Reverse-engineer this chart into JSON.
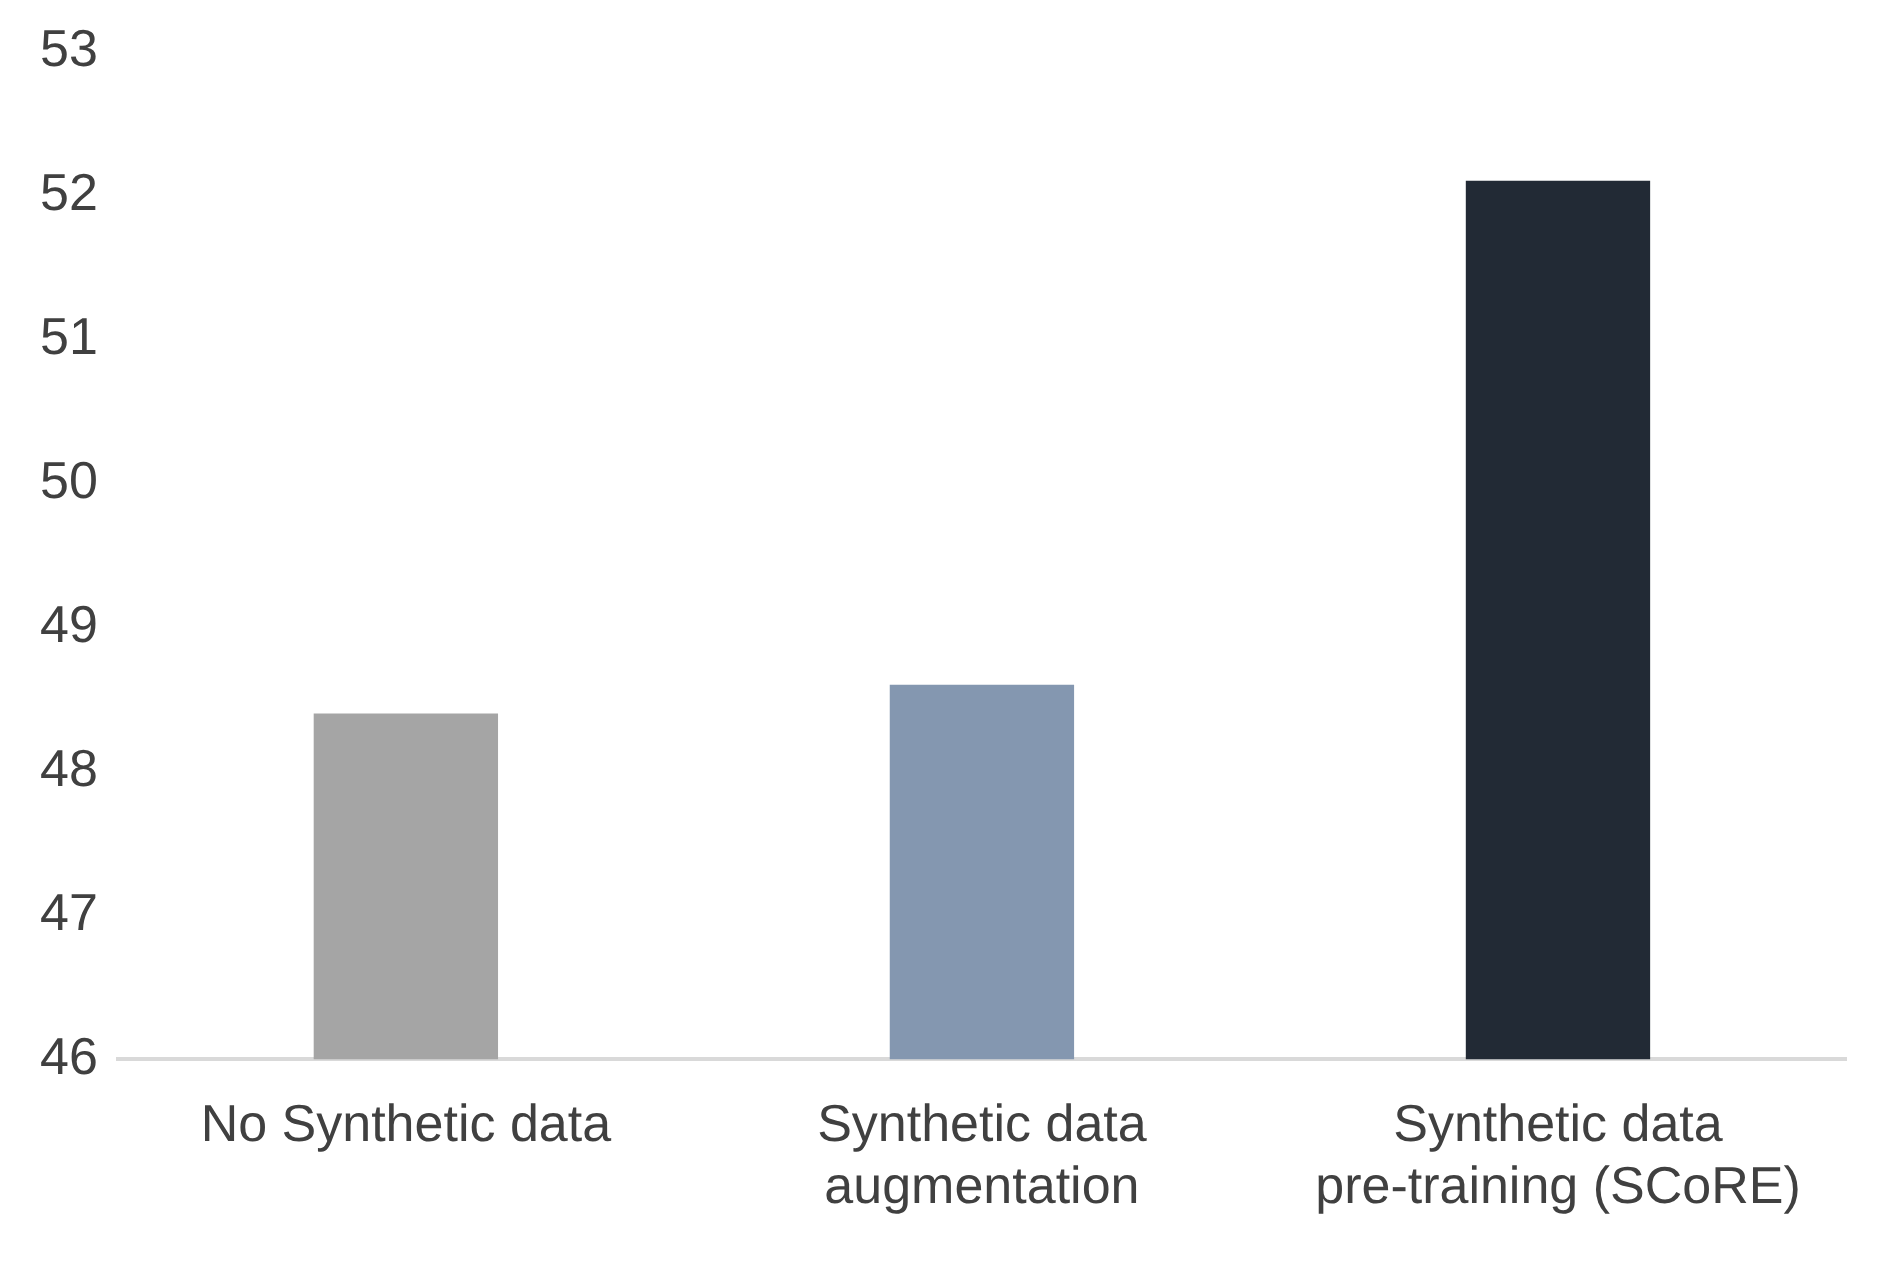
{
  "chart_data": {
    "type": "bar",
    "categories": [
      "No Synthetic data",
      "Synthetic data augmentation",
      "Synthetic data pre-training (SCoRE)"
    ],
    "values": [
      48.4,
      48.6,
      52.1
    ],
    "colors": [
      "#a5a5a5",
      "#8497b0",
      "#222a35"
    ],
    "ylim": [
      46,
      53
    ],
    "yticks": [
      46,
      47,
      48,
      49,
      50,
      51,
      52,
      53
    ],
    "grid": false,
    "legend": false
  }
}
